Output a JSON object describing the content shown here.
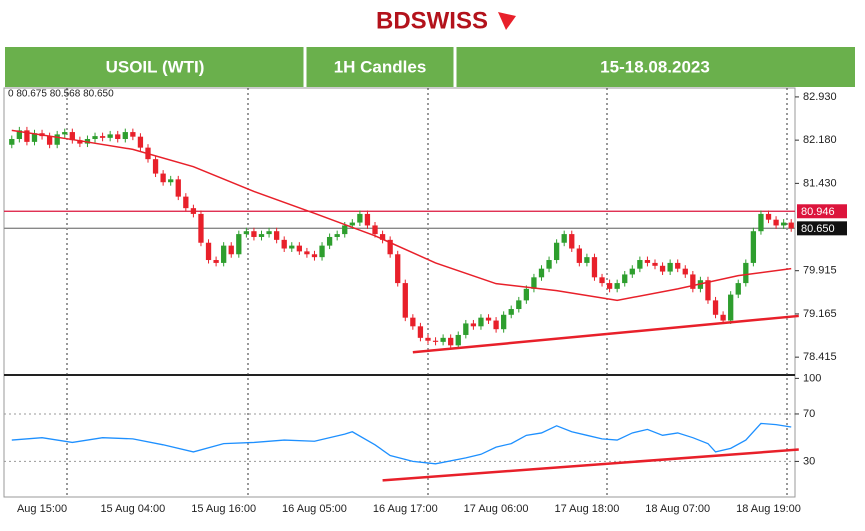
{
  "header": {
    "logo": "BDSWISS",
    "instrument": "USOIL (WTI)",
    "timeframe": "1H Candles",
    "dates": "15-18.08.2023"
  },
  "chart_data": {
    "type": "candlestick",
    "ohlc_text": "0 80.675 80.568 80.650",
    "color_up": "#2e9e2e",
    "color_down": "#e8202a",
    "categories": [
      null,
      null,
      null,
      null,
      "Aug 15:00",
      null,
      null,
      null,
      null,
      null,
      null,
      null,
      null,
      null,
      null,
      null,
      "15 Aug 04:00",
      null,
      null,
      null,
      null,
      null,
      null,
      null,
      null,
      null,
      null,
      null,
      "15 Aug 16:00",
      null,
      null,
      null,
      null,
      null,
      null,
      null,
      null,
      null,
      null,
      null,
      "16 Aug 05:00",
      null,
      null,
      null,
      null,
      null,
      null,
      null,
      null,
      null,
      null,
      null,
      "16 Aug 17:00",
      null,
      null,
      null,
      null,
      null,
      null,
      null,
      null,
      null,
      null,
      null,
      "17 Aug 06:00",
      null,
      null,
      null,
      null,
      null,
      null,
      null,
      null,
      null,
      null,
      null,
      "17 Aug 18:00",
      null,
      null,
      null,
      null,
      null,
      null,
      null,
      null,
      null,
      null,
      null,
      "18 Aug 07:00",
      null,
      null,
      null,
      null,
      null,
      null,
      null,
      null,
      null,
      null,
      null,
      "18 Aug 19:00",
      null,
      null,
      null
    ],
    "open": [
      82.1,
      82.2,
      82.35,
      82.15,
      82.3,
      82.25,
      82.1,
      82.28,
      82.32,
      82.18,
      82.12,
      82.2,
      82.25,
      82.22,
      82.28,
      82.2,
      82.32,
      82.24,
      82.05,
      81.85,
      81.6,
      81.45,
      81.5,
      81.2,
      81.0,
      80.9,
      80.4,
      80.1,
      80.05,
      80.35,
      80.2,
      80.55,
      80.6,
      80.5,
      80.55,
      80.6,
      80.45,
      80.3,
      80.35,
      80.25,
      80.2,
      80.15,
      80.35,
      80.5,
      80.55,
      80.7,
      80.75,
      80.9,
      80.7,
      80.55,
      80.45,
      80.2,
      79.7,
      79.1,
      78.95,
      78.75,
      78.7,
      78.68,
      78.75,
      78.62,
      78.8,
      79.0,
      78.95,
      79.1,
      79.05,
      78.9,
      79.15,
      79.25,
      79.4,
      79.6,
      79.8,
      79.95,
      80.1,
      80.4,
      80.55,
      80.3,
      80.05,
      80.15,
      79.8,
      79.7,
      79.6,
      79.7,
      79.85,
      79.95,
      80.1,
      80.05,
      80.0,
      79.9,
      80.05,
      79.95,
      79.85,
      79.6,
      79.75,
      79.4,
      79.15,
      79.05,
      79.5,
      79.7,
      80.05,
      80.6,
      80.9,
      80.8,
      80.7,
      80.75
    ],
    "high": [
      82.26,
      82.41,
      82.41,
      82.36,
      82.36,
      82.31,
      82.34,
      82.38,
      82.38,
      82.24,
      82.26,
      82.31,
      82.31,
      82.34,
      82.34,
      82.38,
      82.38,
      82.3,
      82.11,
      81.91,
      81.66,
      81.56,
      81.56,
      81.26,
      81.06,
      80.96,
      80.46,
      80.16,
      80.41,
      80.41,
      80.61,
      80.66,
      80.66,
      80.61,
      80.66,
      80.66,
      80.51,
      80.41,
      80.41,
      80.31,
      80.26,
      80.41,
      80.56,
      80.61,
      80.76,
      80.81,
      80.96,
      80.96,
      80.76,
      80.61,
      80.51,
      80.26,
      79.76,
      79.16,
      79.01,
      78.81,
      78.76,
      78.81,
      78.81,
      78.86,
      79.06,
      79.06,
      79.16,
      79.16,
      79.11,
      79.21,
      79.31,
      79.46,
      79.66,
      79.86,
      80.01,
      80.16,
      80.46,
      80.61,
      80.61,
      80.36,
      80.21,
      80.21,
      79.86,
      79.76,
      79.76,
      79.91,
      80.01,
      80.16,
      80.16,
      80.11,
      80.06,
      80.11,
      80.11,
      80.01,
      79.91,
      79.81,
      79.81,
      79.46,
      79.21,
      79.56,
      79.76,
      80.11,
      80.66,
      80.96,
      80.96,
      80.86,
      80.81,
      80.81
    ],
    "low": [
      82.04,
      82.14,
      82.09,
      82.09,
      82.19,
      82.04,
      82.04,
      82.22,
      82.12,
      82.06,
      82.06,
      82.14,
      82.16,
      82.16,
      82.14,
      82.14,
      82.18,
      81.99,
      81.79,
      81.54,
      81.39,
      81.39,
      81.14,
      80.94,
      80.84,
      80.34,
      80.04,
      79.99,
      79.99,
      80.14,
      80.14,
      80.49,
      80.44,
      80.44,
      80.49,
      80.39,
      80.24,
      80.24,
      80.19,
      80.14,
      80.09,
      80.09,
      80.29,
      80.44,
      80.49,
      80.64,
      80.69,
      80.64,
      80.49,
      80.39,
      80.14,
      79.64,
      79.04,
      78.89,
      78.69,
      78.64,
      78.62,
      78.62,
      78.56,
      78.56,
      78.74,
      78.89,
      78.89,
      78.99,
      78.84,
      78.84,
      79.09,
      79.19,
      79.34,
      79.54,
      79.74,
      79.89,
      80.04,
      80.34,
      80.24,
      79.99,
      79.99,
      79.74,
      79.64,
      79.54,
      79.54,
      79.64,
      79.79,
      79.89,
      79.99,
      79.94,
      79.84,
      79.84,
      79.89,
      79.79,
      79.54,
      79.54,
      79.34,
      79.09,
      78.99,
      78.99,
      79.44,
      79.64,
      79.99,
      80.54,
      80.74,
      80.64,
      80.64,
      80.59
    ],
    "close": [
      82.2,
      82.35,
      82.15,
      82.3,
      82.25,
      82.1,
      82.28,
      82.32,
      82.18,
      82.12,
      82.2,
      82.25,
      82.22,
      82.28,
      82.2,
      82.32,
      82.24,
      82.05,
      81.85,
      81.6,
      81.45,
      81.5,
      81.2,
      81.0,
      80.9,
      80.4,
      80.1,
      80.05,
      80.35,
      80.2,
      80.55,
      80.6,
      80.5,
      80.55,
      80.6,
      80.45,
      80.3,
      80.35,
      80.25,
      80.2,
      80.15,
      80.35,
      80.5,
      80.55,
      80.7,
      80.75,
      80.9,
      80.7,
      80.55,
      80.45,
      80.2,
      79.7,
      79.1,
      78.95,
      78.75,
      78.7,
      78.68,
      78.75,
      78.62,
      78.8,
      79.0,
      78.95,
      79.1,
      79.05,
      78.9,
      79.15,
      79.25,
      79.4,
      79.6,
      79.8,
      79.95,
      80.1,
      80.4,
      80.55,
      80.3,
      80.05,
      80.15,
      79.8,
      79.7,
      79.6,
      79.7,
      79.85,
      79.95,
      80.1,
      80.05,
      80.0,
      79.9,
      80.05,
      79.95,
      79.85,
      79.6,
      79.75,
      79.4,
      79.15,
      79.05,
      79.5,
      79.7,
      80.05,
      80.6,
      80.9,
      80.8,
      80.7,
      80.75,
      80.65
    ],
    "ylim": [
      78.14,
      83.05
    ],
    "yticks": [
      {
        "value": 82.93,
        "label": "82.930"
      },
      {
        "value": 82.18,
        "label": "82.180"
      },
      {
        "value": 81.43,
        "label": "81.430"
      },
      79.915,
      79.165,
      78.415
    ],
    "ma": {
      "color": "#e8202a",
      "x": [
        0,
        8,
        16,
        24,
        32,
        40,
        48,
        56,
        64,
        72,
        80,
        88,
        96,
        103
      ],
      "values": [
        82.35,
        82.19,
        82.02,
        81.72,
        81.29,
        80.91,
        80.52,
        80.05,
        79.69,
        79.57,
        79.4,
        79.6,
        79.83,
        79.95
      ]
    },
    "hlines": [
      {
        "value": 80.946,
        "color": "#dc143c"
      },
      {
        "value": {
          "value": 80.65,
          "label": "80.650"
        },
        "color": "#888888"
      }
    ],
    "trendlines": [
      {
        "color": "#e8202a",
        "x": [
          53,
          104
        ],
        "values": [
          78.5,
          79.13
        ]
      }
    ],
    "rsi": {
      "color": "#1e90ff",
      "ylim": [
        0,
        102
      ],
      "yticks": [
        100,
        70,
        30
      ],
      "x": [
        0,
        4,
        8,
        12,
        16,
        20,
        24,
        28,
        32,
        36,
        40,
        44,
        45,
        48,
        50,
        53,
        56,
        60,
        62,
        64,
        66,
        68,
        70,
        72,
        74,
        76,
        78,
        80,
        82,
        84,
        86,
        88,
        90,
        92,
        93,
        95,
        97,
        99,
        101,
        103
      ],
      "values": [
        48,
        50,
        46,
        50,
        49,
        44,
        38,
        45,
        46,
        48,
        47,
        53,
        55,
        44,
        35,
        30,
        28,
        33,
        36,
        42,
        45,
        52,
        54,
        60,
        55,
        52,
        49,
        48,
        54,
        57,
        52,
        54,
        50,
        45,
        38,
        41,
        48,
        62,
        61,
        59
      ],
      "trendline": {
        "color": "#e8202a",
        "x": [
          49,
          104
        ],
        "values": [
          14,
          40
        ]
      }
    }
  }
}
